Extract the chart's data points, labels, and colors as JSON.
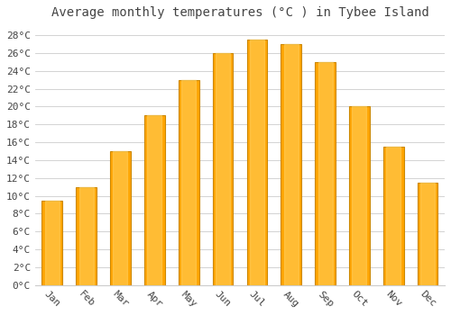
{
  "title": "Average monthly temperatures (°C ) in Tybee Island",
  "months": [
    "Jan",
    "Feb",
    "Mar",
    "Apr",
    "May",
    "Jun",
    "Jul",
    "Aug",
    "Sep",
    "Oct",
    "Nov",
    "Dec"
  ],
  "values": [
    9.5,
    11.0,
    15.0,
    19.0,
    23.0,
    26.0,
    27.5,
    27.0,
    25.0,
    20.0,
    15.5,
    11.5
  ],
  "bar_color": "#FFA500",
  "bar_edge_color": "#CC8800",
  "background_color": "#FFFFFF",
  "plot_bg_color": "#FFFFFF",
  "grid_color": "#CCCCCC",
  "text_color": "#444444",
  "ylim": [
    0,
    29
  ],
  "ytick_step": 2,
  "title_fontsize": 10,
  "tick_fontsize": 8,
  "bar_width": 0.6
}
